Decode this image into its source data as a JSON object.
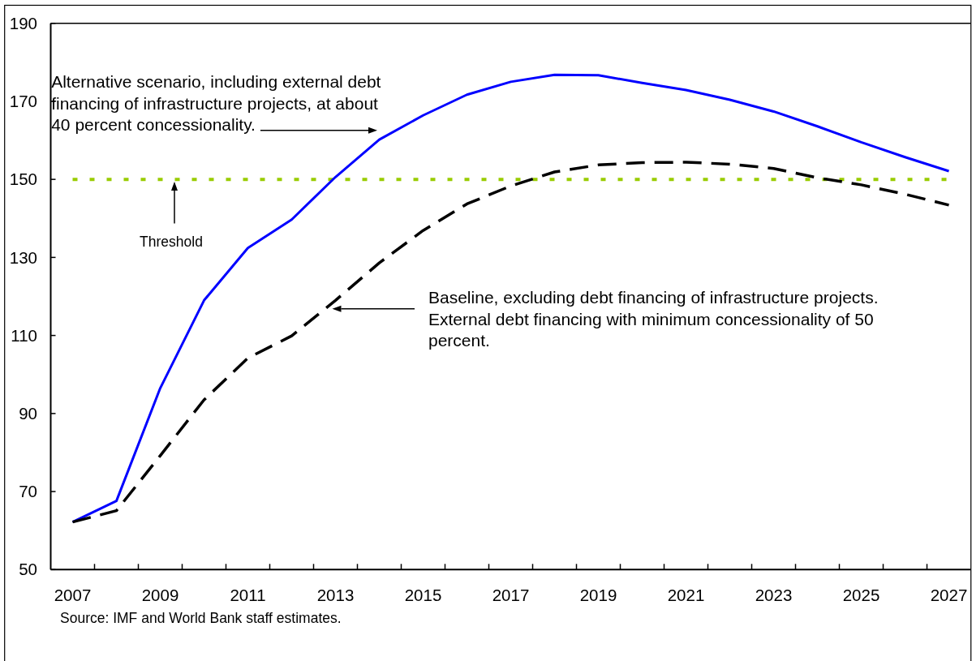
{
  "chart_data": {
    "type": "line",
    "categories": [
      "2007",
      null,
      "2009",
      null,
      "2011",
      null,
      "2013",
      null,
      "2015",
      null,
      "2017",
      null,
      "2019",
      null,
      "2021",
      null,
      "2023",
      null,
      "2025",
      null,
      "2027"
    ],
    "series": [
      {
        "color": "#0000ff",
        "line_style": "solid",
        "values": [
          62.2,
          67.6,
          96.5,
          119.0,
          132.4,
          139.7,
          150.6,
          160.2,
          166.4,
          171.7,
          175.0,
          176.8,
          176.7,
          174.7,
          172.9,
          170.4,
          167.4,
          163.6,
          159.5,
          155.7,
          152.1
        ]
      },
      {
        "color": "#000000",
        "line_style": "dashed",
        "values": [
          62.2,
          65.1,
          79.2,
          93.5,
          104.2,
          109.9,
          119.0,
          128.6,
          136.9,
          143.7,
          148.3,
          151.9,
          153.7,
          154.3,
          154.4,
          153.9,
          152.8,
          150.4,
          148.6,
          146.2,
          143.4
        ]
      }
    ],
    "ylim": [
      50,
      190
    ],
    "yticks": [
      50,
      70,
      90,
      110,
      130,
      150,
      170,
      190
    ],
    "ref_lines": [
      {
        "axis": "y",
        "value": 150,
        "color": "#99cc00",
        "line_style": "dotted"
      }
    ],
    "annotations": [
      "Alternative scenario, including external debt financing of infrastructure projects, at about 40 percent concessionality.",
      "Threshold",
      "Baseline, excluding debt financing of infrastructure projects. External debt financing with minimum concessionality of 50 percent.",
      "Source: IMF and World Bank staff estimates."
    ]
  }
}
